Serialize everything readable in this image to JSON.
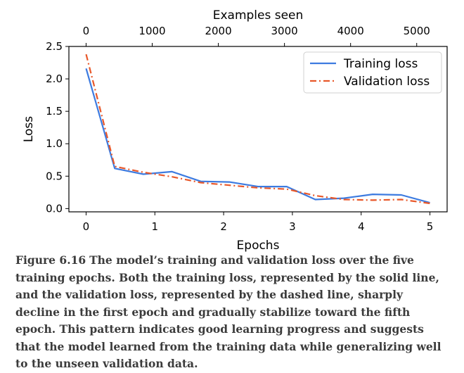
{
  "chart_data": {
    "type": "line",
    "xlabel": "Epochs",
    "ylabel": "Loss",
    "top_xlabel": "Examples seen",
    "xlim": [
      -0.25,
      5.25
    ],
    "ylim": [
      -0.05,
      2.5
    ],
    "xticks": [
      0,
      1,
      2,
      3,
      4,
      5
    ],
    "yticks": [
      0.0,
      0.5,
      1.0,
      1.5,
      2.0,
      2.5
    ],
    "ytick_labels": [
      "0.0",
      "0.5",
      "1.0",
      "1.5",
      "2.0",
      "2.5"
    ],
    "top_ticks": [
      0,
      1000,
      2000,
      3000,
      4000,
      5000
    ],
    "top_max": 5200,
    "legend_position": "upper-right",
    "grid": false,
    "series": [
      {
        "name": "Training loss",
        "style": "solid",
        "color": "#3d7be0",
        "x": [
          0,
          0.417,
          0.833,
          1.25,
          1.667,
          2.083,
          2.5,
          2.917,
          3.333,
          3.75,
          4.167,
          4.583,
          5.0
        ],
        "y": [
          2.16,
          0.62,
          0.53,
          0.57,
          0.42,
          0.41,
          0.34,
          0.34,
          0.14,
          0.16,
          0.22,
          0.21,
          0.09
        ]
      },
      {
        "name": "Validation loss",
        "style": "dashdot",
        "color": "#e8582a",
        "x": [
          0,
          0.417,
          0.833,
          1.25,
          1.667,
          2.083,
          2.5,
          2.917,
          3.333,
          3.75,
          4.167,
          4.583,
          5.0
        ],
        "y": [
          2.38,
          0.65,
          0.56,
          0.49,
          0.4,
          0.36,
          0.32,
          0.3,
          0.2,
          0.14,
          0.13,
          0.14,
          0.08
        ]
      }
    ]
  },
  "caption": {
    "number": "Figure 6.16",
    "text": "The model’s training and validation loss over the five training epochs. Both the training loss, represented by the solid line, and the validation loss, represented by the dashed line, sharply decline in the first epoch and gradually stabilize toward the fifth epoch. This pattern indicates good learning progress and suggests that the model learned from the training data while generalizing well to the unseen validation data."
  }
}
